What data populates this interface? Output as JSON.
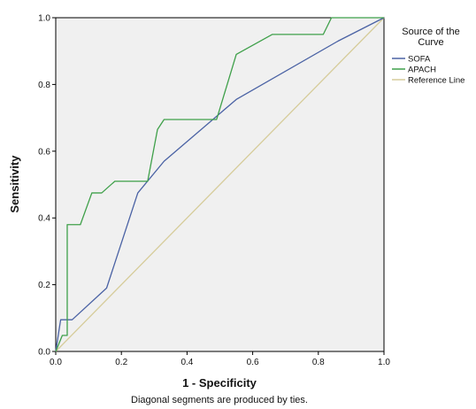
{
  "chart_data": {
    "type": "line",
    "title": "",
    "xlabel": "1 - Specificity",
    "ylabel": "Sensitivity",
    "xlim": [
      0,
      1
    ],
    "ylim": [
      0,
      1
    ],
    "x_ticks": [
      "0.0",
      "0.2",
      "0.4",
      "0.6",
      "0.8",
      "1.0"
    ],
    "y_ticks": [
      "0.0",
      "0.2",
      "0.4",
      "0.6",
      "0.8",
      "1.0"
    ],
    "grid": false,
    "legend_position": "right",
    "legend_title": "Source of the Curve",
    "footnote": "Diagonal segments are produced by ties.",
    "series": [
      {
        "name": "SOFA",
        "color": "#4a62a4",
        "x": [
          0,
          0.015,
          0.05,
          0.155,
          0.25,
          0.33,
          0.55,
          0.86,
          1.0
        ],
        "y": [
          0,
          0.095,
          0.095,
          0.19,
          0.475,
          0.57,
          0.755,
          0.93,
          1.0
        ]
      },
      {
        "name": "APACH",
        "color": "#3fa04a",
        "x": [
          0,
          0.02,
          0.02,
          0.035,
          0.035,
          0.075,
          0.11,
          0.14,
          0.18,
          0.28,
          0.31,
          0.33,
          0.49,
          0.49,
          0.55,
          0.66,
          0.815,
          0.84,
          1.0
        ],
        "y": [
          0,
          0.048,
          0.048,
          0.048,
          0.38,
          0.38,
          0.475,
          0.475,
          0.51,
          0.51,
          0.665,
          0.695,
          0.695,
          0.695,
          0.89,
          0.95,
          0.95,
          1.0,
          1.0
        ]
      },
      {
        "name": "Reference Line",
        "color": "#d6cc9a",
        "x": [
          0,
          1
        ],
        "y": [
          0,
          1
        ]
      }
    ]
  }
}
